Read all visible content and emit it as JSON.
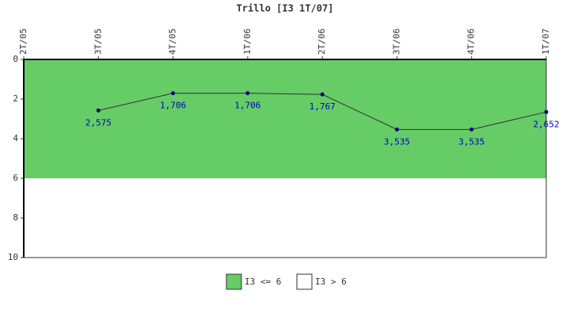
{
  "chart_data": {
    "type": "line",
    "title": "Trillo [I3 1T/07]",
    "categories": [
      "2T/05",
      "3T/05",
      "4T/05",
      "1T/06",
      "2T/06",
      "3T/06",
      "4T/06",
      "1T/07"
    ],
    "values": [
      null,
      2.575,
      1.706,
      1.706,
      1.767,
      3.535,
      3.535,
      2.652
    ],
    "value_labels": [
      null,
      "2,575",
      "1,706",
      "1,706",
      "1,767",
      "3,535",
      "3,535",
      "2,652"
    ],
    "color": "#333333",
    "marker_color": "#000080",
    "label_color": "#0000cc",
    "ylim": [
      0,
      10
    ],
    "yticks": [
      0,
      2,
      4,
      6,
      8,
      10
    ],
    "y_reversed": true,
    "bands": [
      {
        "name": "I3 <= 6",
        "color": "#66cc66",
        "from": 0,
        "to": 6
      },
      {
        "name": "I3 > 6",
        "color": "#ffffff",
        "from": 6,
        "to": 10
      }
    ]
  }
}
